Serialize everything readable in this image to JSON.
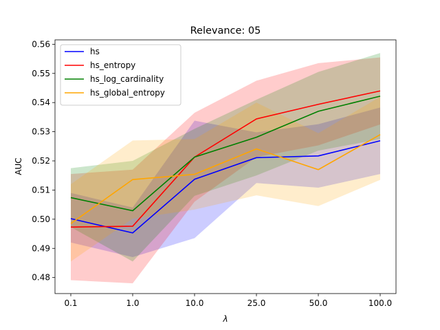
{
  "chart_data": {
    "type": "line",
    "title": "Relevance: 05",
    "xlabel": "λ",
    "ylabel": "AUC",
    "categories": [
      "0.1",
      "1.0",
      "10.0",
      "25.0",
      "50.0",
      "100.0"
    ],
    "ylim": [
      0.4745,
      0.5615
    ],
    "yticks": [
      "0.48",
      "0.49",
      "0.50",
      "0.51",
      "0.52",
      "0.53",
      "0.54",
      "0.55",
      "0.56"
    ],
    "ytick_values": [
      0.48,
      0.49,
      0.5,
      0.51,
      0.52,
      0.53,
      0.54,
      0.55,
      0.56
    ],
    "grid": false,
    "legend_position": "top-left",
    "series": [
      {
        "name": "hs",
        "color": "#0000ff",
        "values": [
          0.5002,
          0.4953,
          0.5137,
          0.5211,
          0.5217,
          0.5269
        ],
        "upper": [
          0.509,
          0.504,
          0.5338,
          0.5298,
          0.5326,
          0.5383
        ],
        "lower": [
          0.492,
          0.487,
          0.4935,
          0.5124,
          0.5108,
          0.5155
        ]
      },
      {
        "name": "hs_entropy",
        "color": "#ff0000",
        "values": [
          0.4973,
          0.4976,
          0.5213,
          0.5344,
          0.5394,
          0.544
        ],
        "upper": [
          0.5155,
          0.517,
          0.5365,
          0.5475,
          0.5535,
          0.5555
        ],
        "lower": [
          0.4791,
          0.478,
          0.506,
          0.5213,
          0.5253,
          0.5325
        ]
      },
      {
        "name": "hs_log_cardinality",
        "color": "#008000",
        "values": [
          0.5074,
          0.5029,
          0.5213,
          0.5281,
          0.537,
          0.5422
        ],
        "upper": [
          0.5175,
          0.52,
          0.531,
          0.541,
          0.5505,
          0.557
        ],
        "lower": [
          0.4973,
          0.4855,
          0.508,
          0.515,
          0.5235,
          0.5275
        ]
      },
      {
        "name": "hs_global_entropy",
        "color": "#ffa500",
        "values": [
          0.4985,
          0.5136,
          0.5154,
          0.5241,
          0.517,
          0.529
        ],
        "upper": [
          0.512,
          0.527,
          0.5275,
          0.54,
          0.5295,
          0.542
        ],
        "lower": [
          0.4855,
          0.5002,
          0.5033,
          0.5082,
          0.5045,
          0.5135
        ]
      }
    ]
  }
}
